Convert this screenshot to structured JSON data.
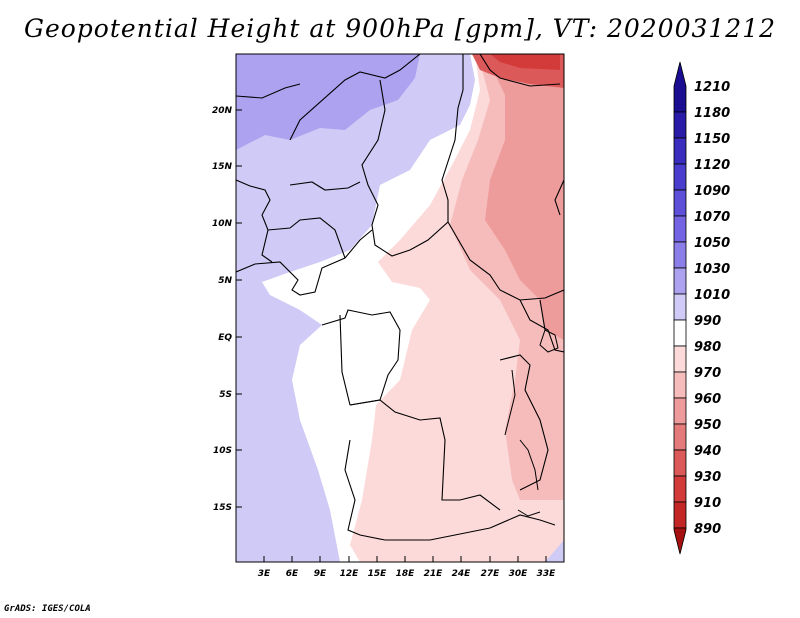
{
  "title": "Geopotential Height at 900hPa [gpm], VT: 2020031212",
  "footer": "GrADS: IGES/COLA",
  "map": {
    "lat_ticks": [
      "20N",
      "15N",
      "10N",
      "5N",
      "EQ",
      "5S",
      "10S",
      "15S"
    ],
    "lon_ticks": [
      "3E",
      "6E",
      "9E",
      "12E",
      "15E",
      "18E",
      "21E",
      "24E",
      "27E",
      "30E",
      "33E"
    ]
  },
  "colorbar": {
    "levels": [
      "1210",
      "1180",
      "1150",
      "1120",
      "1090",
      "1070",
      "1050",
      "1030",
      "1010",
      "990",
      "980",
      "970",
      "960",
      "950",
      "940",
      "930",
      "910",
      "890"
    ],
    "colors": [
      "#1b0d91",
      "#2a1aa8",
      "#3a2cbd",
      "#4a3ccc",
      "#5d4fd8",
      "#7463e2",
      "#8c7ee9",
      "#aca2f0",
      "#d0cbf6",
      "#ffffff",
      "#fcdada",
      "#f6bcbc",
      "#ee9b9b",
      "#e57a7a",
      "#dc5959",
      "#d33b3b",
      "#c42525",
      "#a51010"
    ]
  }
}
